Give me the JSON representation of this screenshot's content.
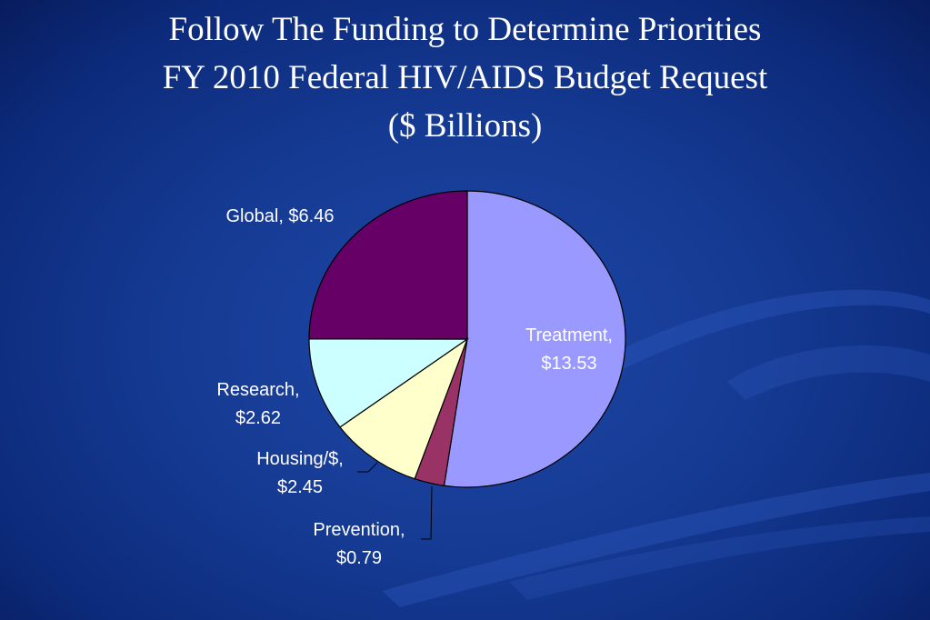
{
  "slide": {
    "title_lines": [
      "Follow The Funding to Determine Priorities",
      "FY 2010 Federal HIV/AIDS Budget Request",
      "($ Billions)"
    ]
  },
  "chart_data": {
    "type": "pie",
    "title": "Follow The Funding to Determine Priorities FY 2010 Federal HIV/AIDS Budget Request ($ Billions)",
    "slices": [
      {
        "name": "Treatment",
        "value": 13.53,
        "label_lines": [
          "Treatment,",
          "$13.53"
        ],
        "color": "#9999ff"
      },
      {
        "name": "Prevention",
        "value": 0.79,
        "label_lines": [
          "Prevention,",
          "$0.79"
        ],
        "color": "#993366"
      },
      {
        "name": "Housing/$",
        "value": 2.45,
        "label_lines": [
          "Housing/$,",
          "$2.45"
        ],
        "color": "#ffffcc"
      },
      {
        "name": "Research",
        "value": 2.62,
        "label_lines": [
          "Research,",
          "$2.62"
        ],
        "color": "#ccffff"
      },
      {
        "name": "Global",
        "value": 6.46,
        "label_lines": [
          "Global, $6.46"
        ],
        "color": "#660066"
      }
    ],
    "start_angle": "12 o'clock",
    "direction": "clockwise",
    "legend": "none",
    "label_colors": {
      "inside": "#ffffff",
      "outside": "#ffffff"
    }
  }
}
